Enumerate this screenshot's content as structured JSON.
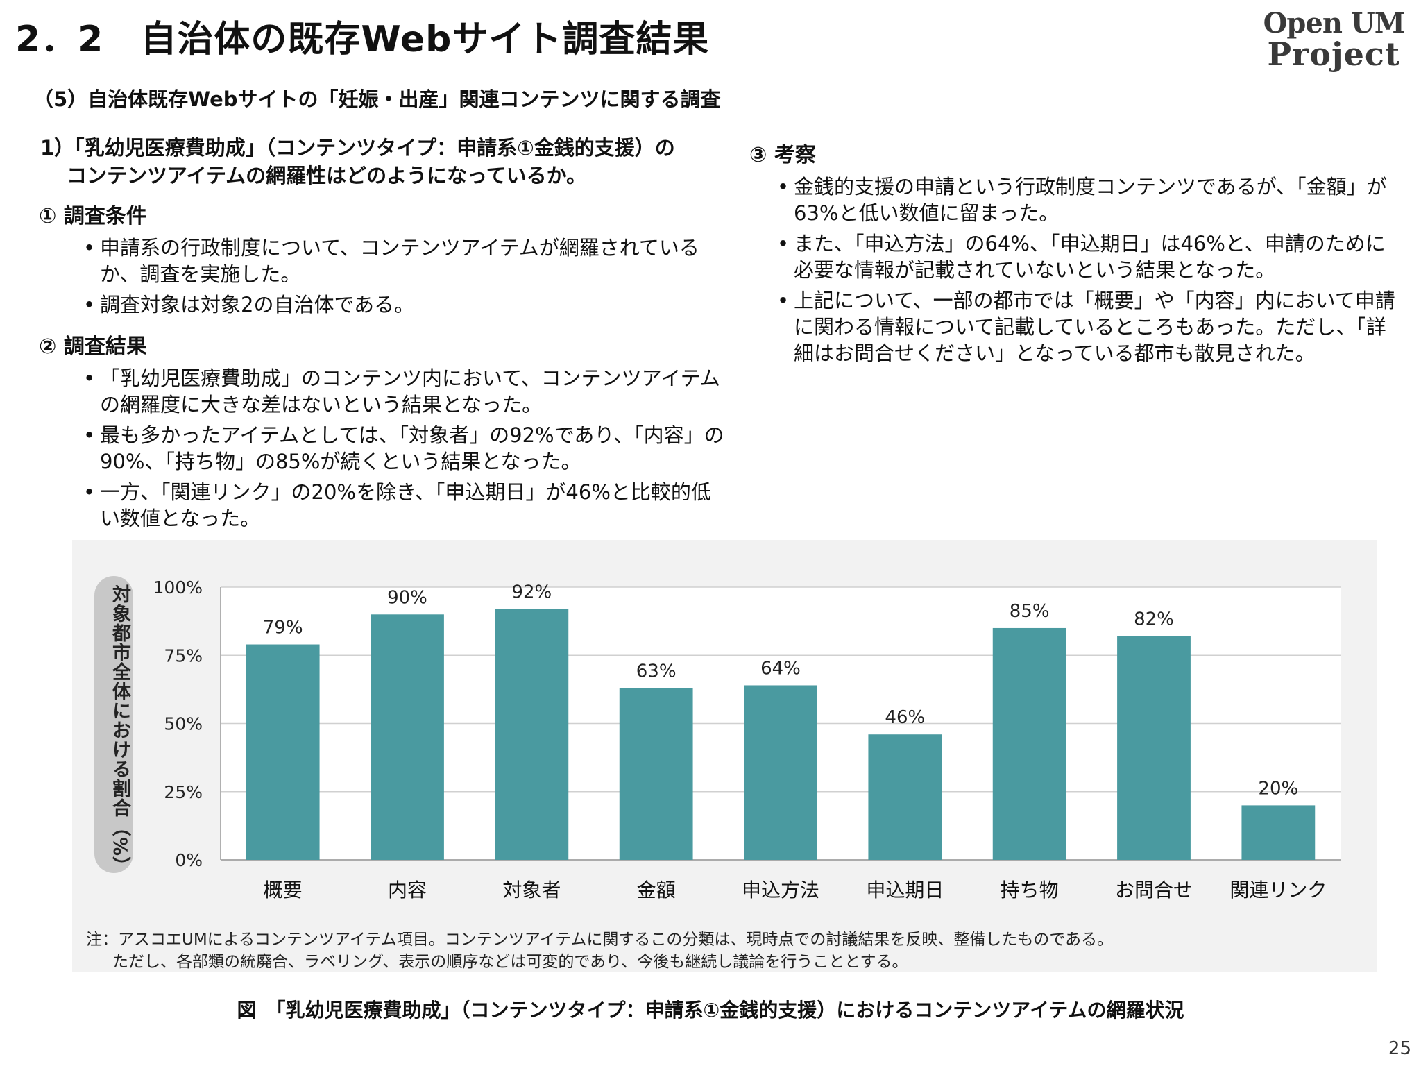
{
  "header": {
    "title": "2．2　自治体の既存Webサイト調査結果",
    "logo_line1": "Open UM",
    "logo_line2": "Project"
  },
  "subtitle": "（5）自治体既存Webサイトの「妊娠・出産」関連コンテンツに関する調査",
  "question": {
    "line1": "1）「乳幼児医療費助成」（コンテンツタイプ：申請系①金銭的支援）の",
    "line2": "コンテンツアイテムの網羅性はどのようになっているか。"
  },
  "section1": {
    "heading": "① 調査条件",
    "bullets": [
      "申請系の行政制度について、コンテンツアイテムが網羅されているか、調査を実施した。",
      "調査対象は対象2の自治体である。"
    ]
  },
  "section2": {
    "heading": "② 調査結果",
    "bullets": [
      "「乳幼児医療費助成」のコンテンツ内において、コンテンツアイテムの網羅度に大きな差はないという結果となった。",
      "最も多かったアイテムとしては、「対象者」の92%であり、「内容」の90%、「持ち物」の85%が続くという結果となった。",
      "一方、「関連リンク」の20%を除き、「申込期日」が46%と比較的低い数値となった。"
    ]
  },
  "section3": {
    "heading": "③ 考察",
    "bullets": [
      "金銭的支援の申請という行政制度コンテンツであるが、「金額」が63%と低い数値に留まった。",
      "また、「申込方法」の64%、「申込期日」は46%と、申請のために必要な情報が記載されていないという結果となった。",
      "上記について、一部の都市では「概要」や「内容」内において申請に関わる情報について記載しているところもあった。ただし、「詳細はお問合せください」となっている都市も散見された。"
    ]
  },
  "chart_data": {
    "type": "bar",
    "categories": [
      "概要",
      "内容",
      "対象者",
      "金額",
      "申込方法",
      "申込期日",
      "持ち物",
      "お問合せ",
      "関連リンク"
    ],
    "values": [
      79,
      90,
      92,
      63,
      64,
      46,
      85,
      82,
      20
    ],
    "value_labels": [
      "79%",
      "90%",
      "92%",
      "63%",
      "64%",
      "46%",
      "85%",
      "82%",
      "20%"
    ],
    "ylabel": "対象都市全体における割合（%）",
    "ylim": [
      0,
      100
    ],
    "yticks": [
      0,
      25,
      50,
      75,
      100
    ],
    "ytick_labels": [
      "0%",
      "25%",
      "50%",
      "75%",
      "100%"
    ],
    "grid": true,
    "bar_color": "#4a9aa0"
  },
  "note": {
    "line1": "注：アスコエUMによるコンテンツアイテム項目。コンテンツアイテムに関するこの分類は、現時点での討議結果を反映、整備したものである。",
    "line2": "ただし、各部類の統廃合、ラベリング、表示の順序などは可変的であり、今後も継続し議論を行うこととする。"
  },
  "caption": "図　「乳幼児医療費助成」（コンテンツタイプ：申請系①金銭的支援）におけるコンテンツアイテムの網羅状況",
  "page_number": "25"
}
